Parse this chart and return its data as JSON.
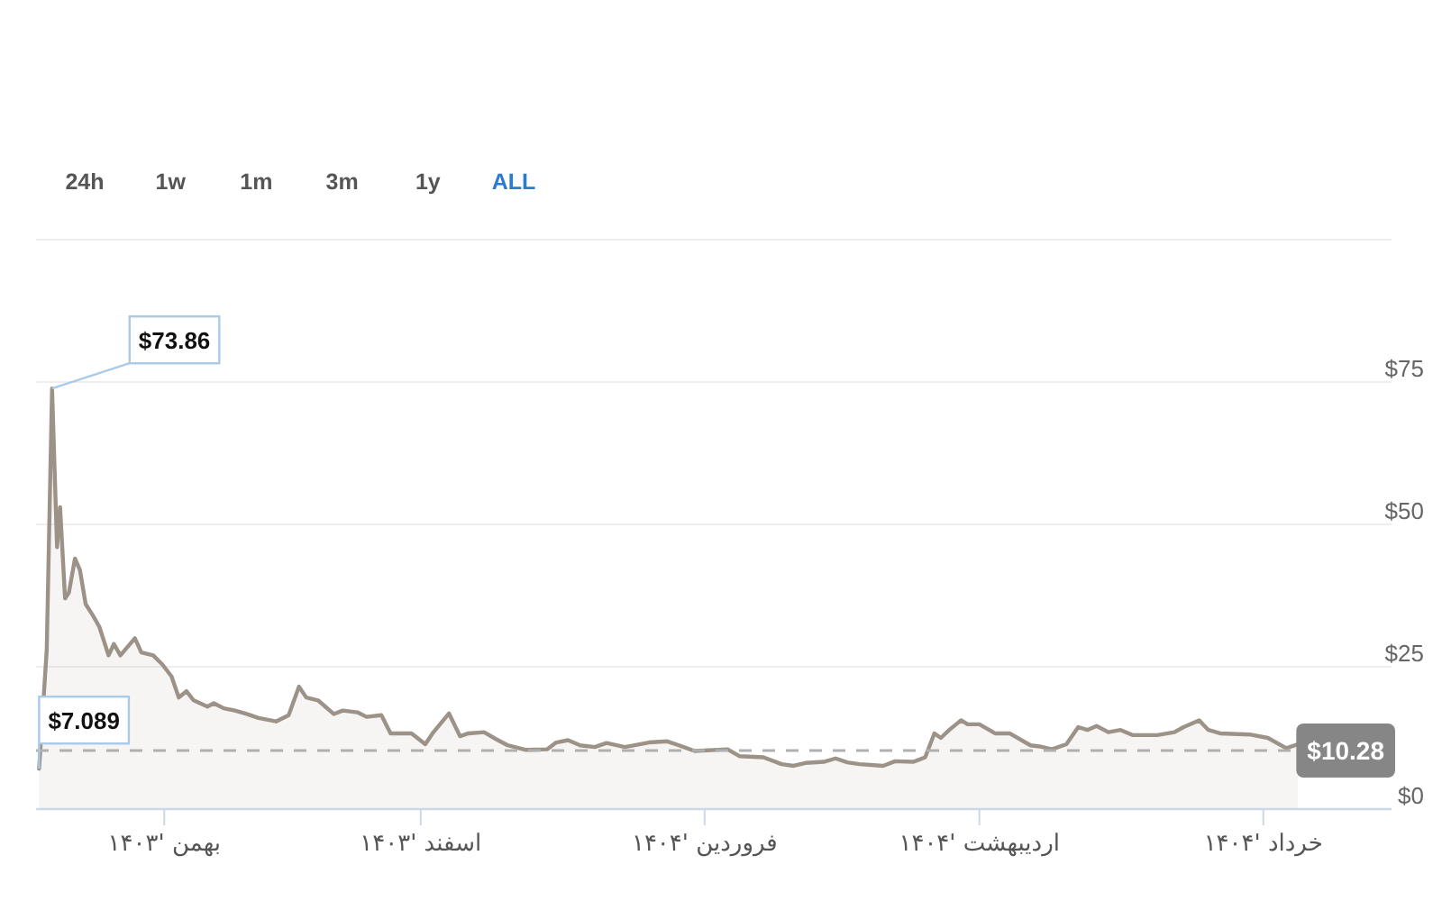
{
  "chart_data": {
    "type": "area",
    "color": "#9c9287",
    "x": [
      "--01-18T08:00",
      "--01-19T04:00",
      "--01-19T18:00",
      "--01-20T07:00",
      "--01-20T15:00",
      "--01-21T04:00",
      "--01-21T14:00",
      "--01-22T06:00",
      "--01-22T19:00",
      "--01-23T10:00",
      "--01-24T05:00",
      "--01-24T22:00",
      "--01-25T22:00",
      "--01-26T12:00",
      "--01-27T05:00",
      "--01-28T19:00",
      "--01-29T12:00",
      "--01-30T19:00",
      "--01-31T19:00",
      "--02-01T19:00",
      "--02-02T14:00",
      "--02-03T10:00",
      "--02-04T05:00",
      "--02-05T17:00",
      "--02-06T10:00",
      "--02-07T12:00",
      "--02-08T17:00",
      "--02-10T00:00",
      "--02-11T07:00",
      "--02-13T05:00",
      "--02-14T14:00",
      "--02-15T17:00",
      "--02-16T12:00",
      "--02-17T19:00",
      "--02-19T12:00",
      "--02-20T12:00",
      "--02-22T02:00",
      "--02-23T02:00",
      "--02-24T17:00",
      "--02-25T17:00",
      "--02-28T00:00",
      "--03-01T12:00",
      "--03-02T07:00",
      "--03-04T02:00",
      "--03-05T07:00",
      "--03-06T05:00",
      "--03-07T22:00",
      "--03-09T05:00",
      "--03-10T12:00",
      "--03-12T12:00",
      "--03-14T19:00",
      "--03-15T19:00",
      "--03-17T02:00",
      "--03-18T10:00",
      "--03-20T00:00",
      "--03-21T07:00",
      "--03-23T07:00",
      "--03-25T22:00",
      "--03-27T22:00",
      "--03-29T05:00",
      "--03-30T22:00",
      "--04-03T12:00",
      "--04-04T19:00",
      "--04-07T10:00",
      "--04-09T10:00",
      "--04-10T17:00",
      "--04-12T00:00",
      "--04-14T00:00",
      "--04-15T07:00",
      "--04-16T14:00",
      "--04-17T22:00",
      "--04-20T12:00",
      "--04-21T19:00",
      "--04-23T19:00",
      "--04-25T02:00",
      "--04-26T02:00",
      "--04-26T19:00",
      "--04-27T17:00",
      "--04-29T00:00",
      "--04-29T17:00",
      "--05-01T00:00",
      "--05-02T17:00",
      "--05-04T07:00",
      "--05-06T14:00",
      "--05-07T14:00",
      "--05-08T22:00",
      "--05-10T12:00",
      "--05-11T19:00",
      "--05-12T19:00",
      "--05-13T19:00",
      "--05-15T02:00",
      "--05-16T10:00",
      "--05-17T17:00",
      "--05-20T10:00",
      "--05-22T07:00",
      "--05-23T07:00",
      "--05-25T00:00",
      "--05-26T00:00",
      "--05-27T07:00",
      "--05-30T12:00",
      "--06-01T12:00",
      "--06-03T12:00",
      "--06-04T19:00"
    ],
    "values": [
      7.089,
      28,
      73.86,
      46,
      53,
      37,
      38,
      44,
      42,
      36,
      34,
      32,
      27,
      29,
      27,
      30,
      27.5,
      27,
      25.4,
      23.3,
      19.6,
      20.7,
      19.1,
      18,
      18.6,
      17.7,
      17.3,
      16.7,
      16,
      15.4,
      16.5,
      21.5,
      19.6,
      19.1,
      16.7,
      17.3,
      17,
      16.2,
      16.5,
      13.3,
      13.3,
      11.4,
      13.3,
      16.8,
      12.8,
      13.3,
      13.5,
      12.3,
      11.2,
      10.4,
      10.5,
      11.7,
      12.1,
      11.2,
      10.9,
      11.6,
      10.9,
      11.7,
      11.9,
      11.2,
      10.2,
      10.5,
      9.3,
      9.1,
      7.9,
      7.6,
      8.1,
      8.3,
      8.9,
      8.2,
      7.9,
      7.6,
      8.4,
      8.3,
      9.1,
      13.3,
      12.5,
      13.9,
      15.6,
      14.9,
      14.9,
      13.3,
      13.3,
      11.2,
      11,
      10.5,
      11.4,
      14.4,
      13.9,
      14.6,
      13.5,
      13.9,
      13,
      13,
      13.5,
      14.4,
      15.6,
      13.9,
      13.3,
      13.1,
      12.5,
      10.7,
      11.4
    ],
    "xlim": [
      "--01-18",
      "--06-15"
    ],
    "xticks": [
      {
        "value": "--02-01",
        "label": "بهمن '۱۴۰۳"
      },
      {
        "value": "--03-01",
        "label": "اسفند '۱۴۰۳"
      },
      {
        "value": "--04-01",
        "label": "فروردین '۱۴۰۴"
      },
      {
        "value": "--05-01",
        "label": "اردیبهشت '۱۴۰۴"
      },
      {
        "value": "--06-01",
        "label": "خرداد '۱۴۰۴"
      }
    ],
    "ylim": [
      0,
      100
    ],
    "yticks": [
      {
        "value": 0,
        "label": "$0"
      },
      {
        "value": 25,
        "label": "$25"
      },
      {
        "value": 50,
        "label": "$50"
      },
      {
        "value": 75,
        "label": "$75"
      },
      {
        "value": 100,
        "label": null
      }
    ],
    "grid": "y",
    "ref_lines": [
      {
        "axis": "y",
        "value": 10.28,
        "label": "$10.28",
        "color": "#b0b0b0",
        "line_style": "dashed"
      }
    ],
    "annotations": [
      "24h",
      "1w",
      "1m",
      "3m",
      "1y",
      "ALL",
      {
        "text": "$73.86",
        "x": "--01-19T18:00",
        "y": 73.86
      },
      {
        "text": "$7.089",
        "x": "--01-18T08:00",
        "y": 7.089
      }
    ]
  }
}
